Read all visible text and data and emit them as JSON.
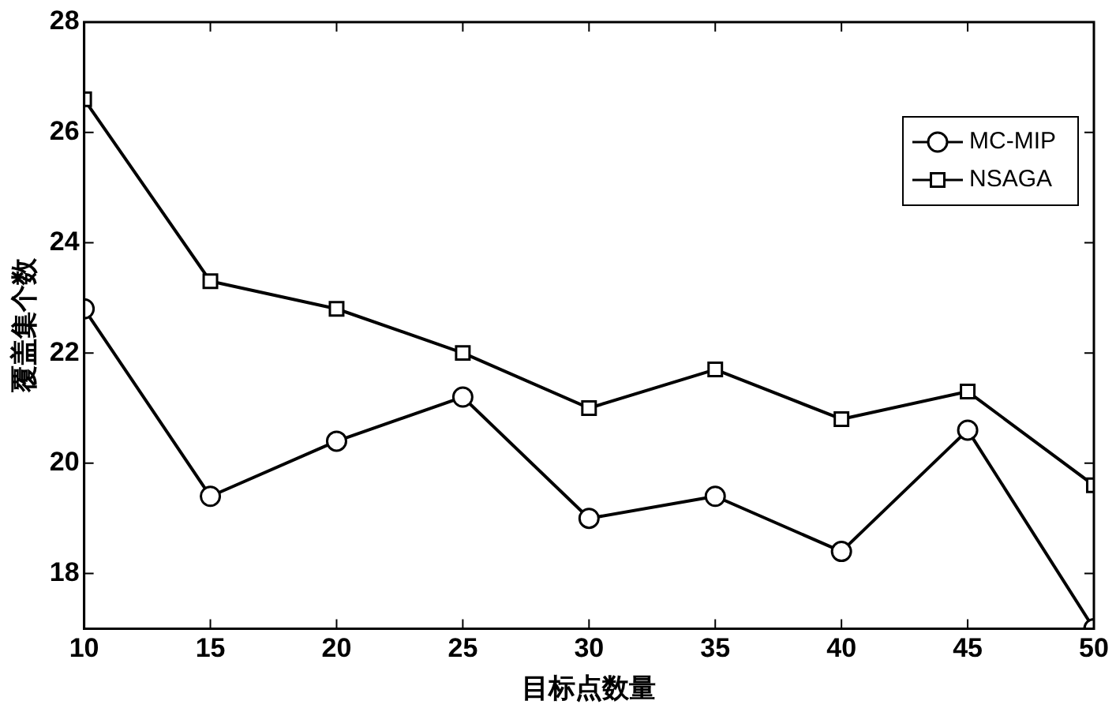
{
  "chart_data": {
    "type": "line",
    "xlabel": "目标点数量",
    "ylabel": "覆盖集个数",
    "x": [
      10,
      15,
      20,
      25,
      30,
      35,
      40,
      45,
      50
    ],
    "series": [
      {
        "name": "MC-MIP",
        "color": "#000000",
        "marker": "circle",
        "values": [
          22.8,
          19.4,
          20.4,
          21.2,
          19.0,
          19.4,
          18.4,
          20.6,
          17.0
        ]
      },
      {
        "name": "NSAGA",
        "color": "#000000",
        "marker": "square",
        "values": [
          26.6,
          23.3,
          22.8,
          22.0,
          21.0,
          21.7,
          20.8,
          21.3,
          19.6
        ]
      }
    ],
    "xlim": [
      10,
      50
    ],
    "xticks": [
      10,
      15,
      20,
      25,
      30,
      35,
      40,
      45,
      50
    ],
    "ylim": [
      17,
      28
    ],
    "yticks": [
      18,
      20,
      22,
      24,
      26,
      28
    ],
    "grid": false,
    "legend": "top right",
    "line_style": "solid"
  }
}
